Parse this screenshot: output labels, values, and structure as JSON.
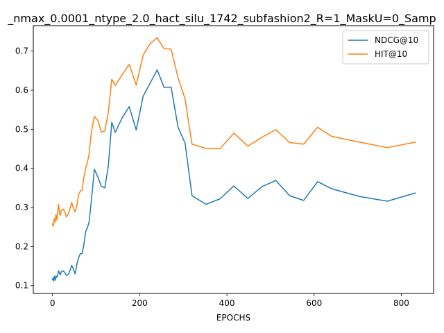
{
  "chart_data": {
    "type": "line",
    "title": "_nmax_0.0001_ntype_2.0_hact_silu_1742_subfashion2_R=1_MaskU=0_Samp",
    "xlabel": "EPOCHS",
    "ylabel": "",
    "xlim": [
      -44,
      874
    ],
    "ylim": [
      0.08,
      0.765
    ],
    "xticks": [
      0,
      200,
      400,
      600,
      800
    ],
    "yticks": [
      0.1,
      0.2,
      0.3,
      0.4,
      0.5,
      0.6,
      0.7
    ],
    "legend_position": "top-right",
    "grid": false,
    "series": [
      {
        "name": "NDCG@10",
        "color": "#1f77b4",
        "points": [
          [
            0,
            0.118
          ],
          [
            2,
            0.112
          ],
          [
            4,
            0.124
          ],
          [
            6,
            0.113
          ],
          [
            8,
            0.125
          ],
          [
            10,
            0.121
          ],
          [
            12,
            0.128
          ],
          [
            14,
            0.138
          ],
          [
            16,
            0.132
          ],
          [
            18,
            0.128
          ],
          [
            20,
            0.135
          ],
          [
            24,
            0.138
          ],
          [
            28,
            0.134
          ],
          [
            32,
            0.126
          ],
          [
            36,
            0.128
          ],
          [
            40,
            0.138
          ],
          [
            44,
            0.152
          ],
          [
            48,
            0.142
          ],
          [
            52,
            0.13
          ],
          [
            56,
            0.155
          ],
          [
            60,
            0.172
          ],
          [
            64,
            0.182
          ],
          [
            68,
            0.182
          ],
          [
            72,
            0.205
          ],
          [
            76,
            0.238
          ],
          [
            80,
            0.248
          ],
          [
            84,
            0.263
          ],
          [
            88,
            0.305
          ],
          [
            92,
            0.35
          ],
          [
            96,
            0.398
          ],
          [
            104,
            0.378
          ],
          [
            112,
            0.354
          ],
          [
            120,
            0.35
          ],
          [
            128,
            0.405
          ],
          [
            136,
            0.518
          ],
          [
            144,
            0.492
          ],
          [
            160,
            0.53
          ],
          [
            176,
            0.558
          ],
          [
            192,
            0.498
          ],
          [
            208,
            0.585
          ],
          [
            224,
            0.618
          ],
          [
            240,
            0.652
          ],
          [
            256,
            0.607
          ],
          [
            272,
            0.608
          ],
          [
            288,
            0.505
          ],
          [
            304,
            0.465
          ],
          [
            320,
            0.33
          ],
          [
            352,
            0.308
          ],
          [
            384,
            0.322
          ],
          [
            416,
            0.355
          ],
          [
            448,
            0.323
          ],
          [
            480,
            0.353
          ],
          [
            512,
            0.369
          ],
          [
            544,
            0.33
          ],
          [
            576,
            0.318
          ],
          [
            608,
            0.366
          ],
          [
            640,
            0.348
          ],
          [
            704,
            0.328
          ],
          [
            768,
            0.316
          ],
          [
            832,
            0.337
          ]
        ]
      },
      {
        "name": "HIT@10",
        "color": "#ff7f0e",
        "points": [
          [
            0,
            0.258
          ],
          [
            2,
            0.252
          ],
          [
            4,
            0.272
          ],
          [
            6,
            0.262
          ],
          [
            8,
            0.282
          ],
          [
            10,
            0.268
          ],
          [
            12,
            0.29
          ],
          [
            14,
            0.308
          ],
          [
            16,
            0.285
          ],
          [
            18,
            0.28
          ],
          [
            20,
            0.292
          ],
          [
            24,
            0.296
          ],
          [
            28,
            0.29
          ],
          [
            32,
            0.276
          ],
          [
            36,
            0.282
          ],
          [
            40,
            0.296
          ],
          [
            44,
            0.313
          ],
          [
            48,
            0.298
          ],
          [
            52,
            0.289
          ],
          [
            56,
            0.305
          ],
          [
            60,
            0.333
          ],
          [
            64,
            0.342
          ],
          [
            68,
            0.345
          ],
          [
            72,
            0.377
          ],
          [
            76,
            0.4
          ],
          [
            80,
            0.415
          ],
          [
            84,
            0.437
          ],
          [
            88,
            0.482
          ],
          [
            92,
            0.51
          ],
          [
            96,
            0.533
          ],
          [
            104,
            0.523
          ],
          [
            112,
            0.492
          ],
          [
            120,
            0.496
          ],
          [
            128,
            0.543
          ],
          [
            136,
            0.628
          ],
          [
            144,
            0.612
          ],
          [
            160,
            0.64
          ],
          [
            176,
            0.666
          ],
          [
            192,
            0.613
          ],
          [
            208,
            0.69
          ],
          [
            224,
            0.719
          ],
          [
            240,
            0.734
          ],
          [
            256,
            0.706
          ],
          [
            272,
            0.705
          ],
          [
            288,
            0.632
          ],
          [
            304,
            0.578
          ],
          [
            320,
            0.462
          ],
          [
            352,
            0.451
          ],
          [
            384,
            0.45
          ],
          [
            416,
            0.49
          ],
          [
            448,
            0.457
          ],
          [
            480,
            0.479
          ],
          [
            512,
            0.499
          ],
          [
            544,
            0.466
          ],
          [
            576,
            0.462
          ],
          [
            608,
            0.505
          ],
          [
            640,
            0.482
          ],
          [
            704,
            0.467
          ],
          [
            768,
            0.453
          ],
          [
            832,
            0.467
          ]
        ]
      }
    ]
  }
}
